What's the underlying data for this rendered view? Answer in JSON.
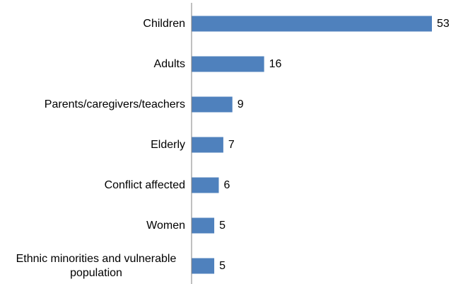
{
  "colors": {
    "bar": "#4f81bd",
    "axis": "#808080",
    "text": "#000000"
  },
  "chart_data": {
    "type": "bar",
    "orientation": "horizontal",
    "categories": [
      "Children",
      "Adults",
      "Parents/caregivers/teachers",
      "Elderly",
      "Conflict affected",
      "Women",
      "Ethnic minorities and vulnerable population"
    ],
    "category_label_lines": [
      [
        "Children"
      ],
      [
        "Adults"
      ],
      [
        "Parents/caregivers/teachers"
      ],
      [
        "Elderly"
      ],
      [
        "Conflict affected"
      ],
      [
        "Women"
      ],
      [
        "Ethnic minorities and vulnerable",
        "population"
      ]
    ],
    "values": [
      53,
      16,
      9,
      7,
      6,
      5,
      5
    ],
    "data_labels": [
      "53",
      "16",
      "9",
      "7",
      "6",
      "5",
      "5"
    ],
    "title": "",
    "xlabel": "",
    "ylabel": "",
    "xlim": [
      0,
      53
    ],
    "grid": false,
    "legend": "none"
  }
}
